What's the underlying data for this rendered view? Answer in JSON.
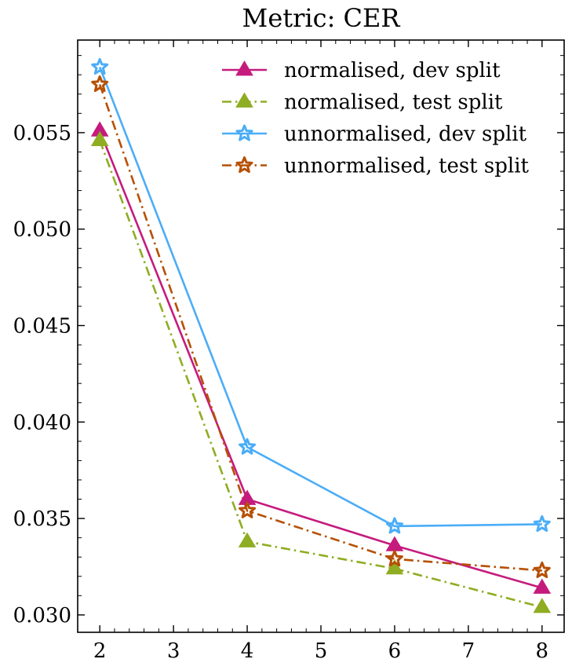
{
  "chart_data": {
    "type": "line",
    "title": "Metric: CER",
    "xlabel": "",
    "ylabel": "",
    "xlim": [
      1.7,
      8.3
    ],
    "ylim": [
      0.0291,
      0.0598
    ],
    "x_ticks": [
      2,
      3,
      4,
      5,
      6,
      7,
      8
    ],
    "y_ticks": [
      0.03,
      0.035,
      0.04,
      0.045,
      0.05,
      0.055
    ],
    "y_tick_decimals": 3,
    "legend_position": "top-right",
    "grid": false,
    "x": [
      2,
      4,
      6,
      8
    ],
    "series": [
      {
        "name": "normalised, dev split",
        "values": [
          0.0551,
          0.036,
          0.0336,
          0.0314
        ],
        "color": "#c51b7d",
        "marker": "triangle",
        "linestyle": "solid"
      },
      {
        "name": "normalised, test split",
        "values": [
          0.0546,
          0.0338,
          0.0324,
          0.0304
        ],
        "color": "#8fad22",
        "marker": "triangle",
        "linestyle": "dashdot"
      },
      {
        "name": "unnormalised, dev split",
        "values": [
          0.0584,
          0.0387,
          0.0346,
          0.0347
        ],
        "color": "#4badf7",
        "marker": "star",
        "linestyle": "solid"
      },
      {
        "name": "unnormalised, test split",
        "values": [
          0.0575,
          0.0354,
          0.0329,
          0.0323
        ],
        "color": "#b65004",
        "marker": "star",
        "linestyle": "dashdot"
      }
    ]
  }
}
